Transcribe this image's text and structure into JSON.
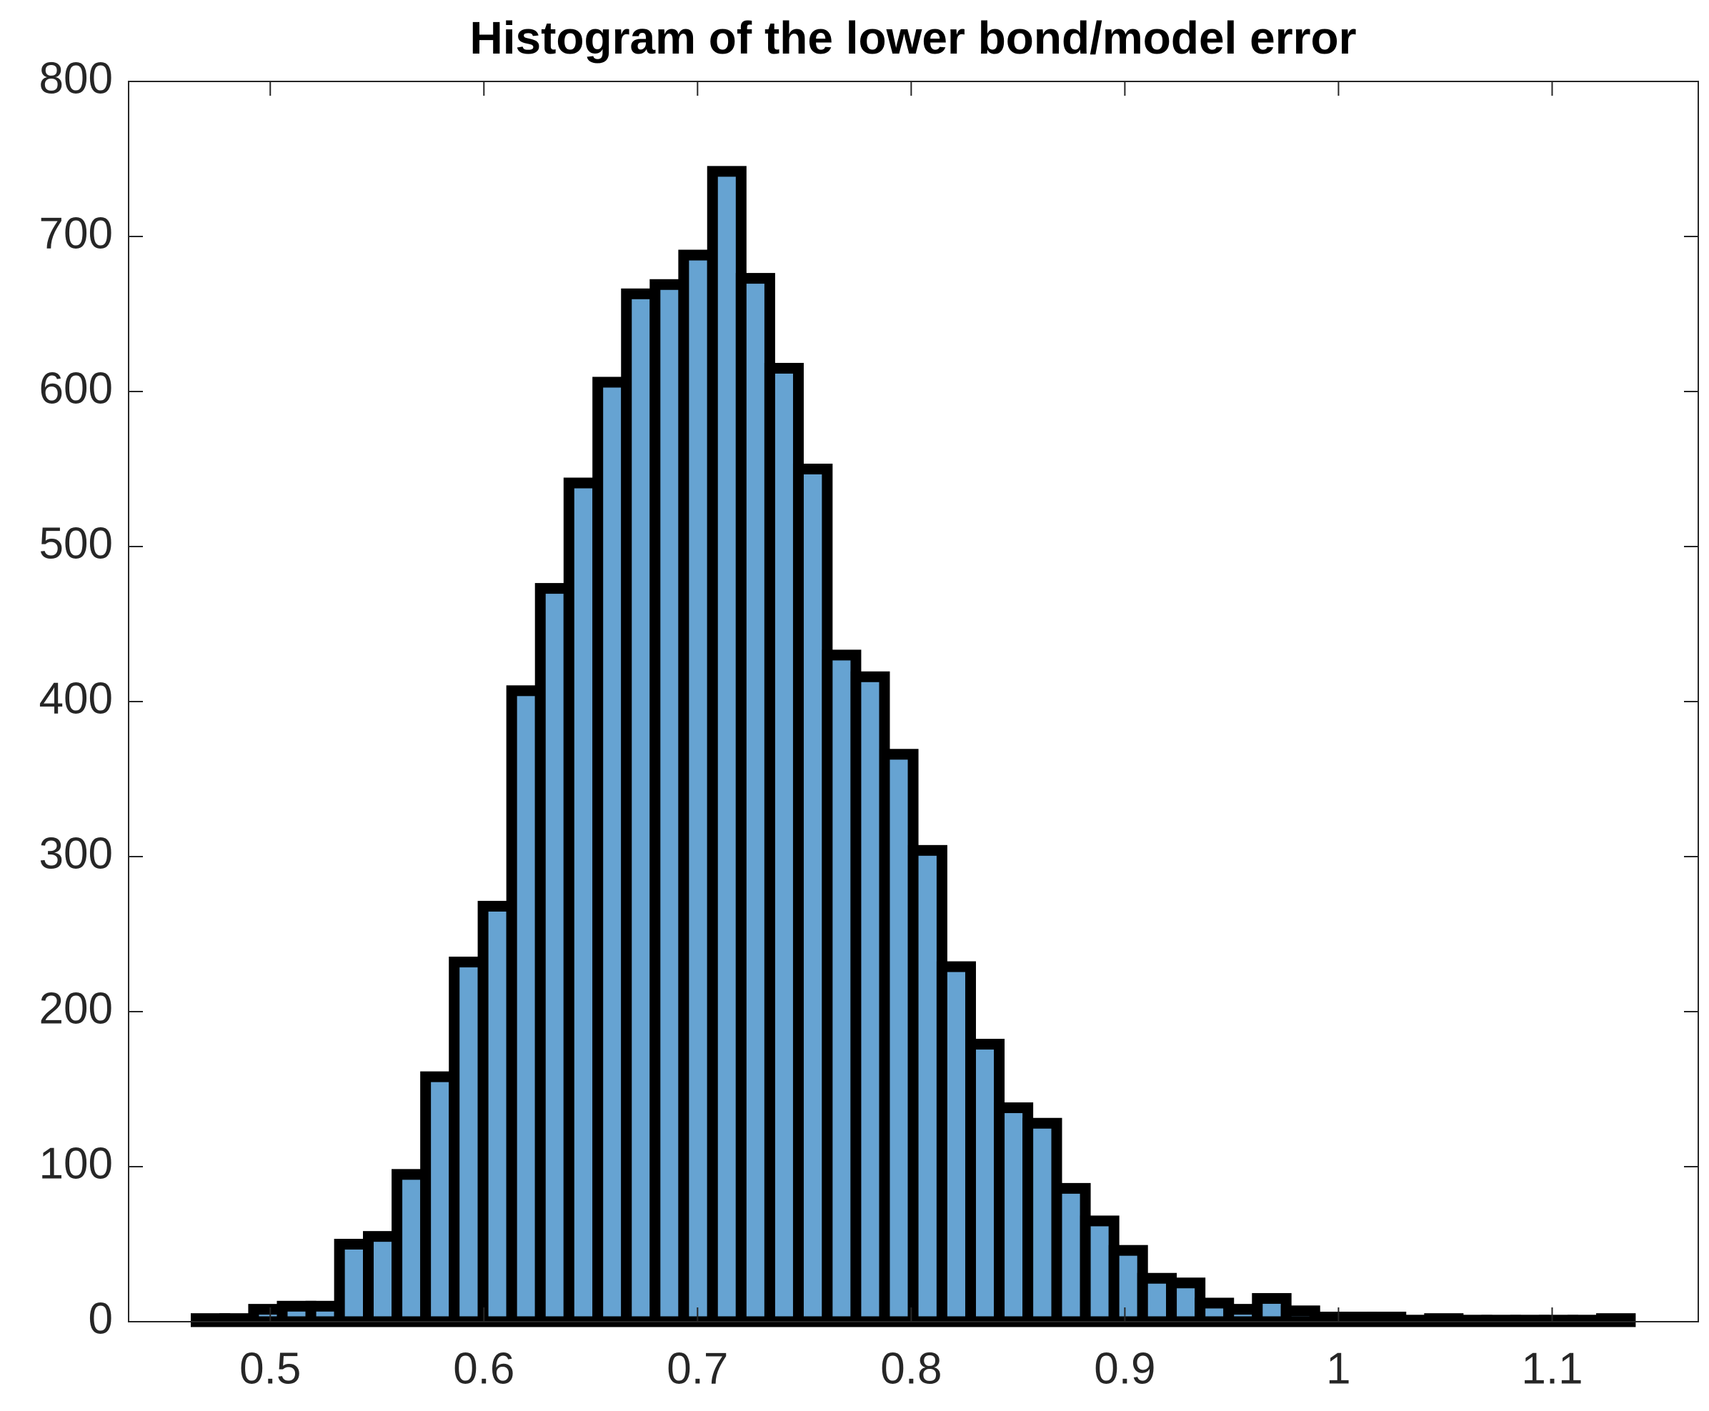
{
  "chart_data": {
    "type": "histogram",
    "title": "Histogram of the lower bond/model error",
    "bins": [
      0.4653,
      0.4787,
      0.4922,
      0.5056,
      0.519,
      0.5324,
      0.5459,
      0.5593,
      0.5727,
      0.5861,
      0.5996,
      0.613,
      0.6264,
      0.6398,
      0.6533,
      0.6667,
      0.6801,
      0.6935,
      0.707,
      0.7204,
      0.7338,
      0.7472,
      0.7607,
      0.7741,
      0.7875,
      0.8009,
      0.8144,
      0.8278,
      0.8412,
      0.8546,
      0.8681,
      0.8815,
      0.8949,
      0.9083,
      0.9218,
      0.9352,
      0.9486,
      0.962,
      0.9755,
      0.9889,
      1.0023,
      1.0157,
      1.0292,
      1.0426,
      1.056,
      1.0694,
      1.0829,
      1.0963,
      1.1097,
      1.1231,
      1.1366
    ],
    "values": [
      2,
      2,
      8,
      10,
      10,
      50,
      55,
      95,
      158,
      232,
      268,
      407,
      473,
      541,
      606,
      663,
      669,
      688,
      742,
      673,
      615,
      550,
      430,
      416,
      366,
      304,
      229,
      179,
      138,
      128,
      86,
      65,
      46,
      28,
      25,
      12,
      8,
      15,
      7,
      3,
      3,
      3,
      1,
      2,
      1,
      1,
      1,
      1,
      1,
      2
    ],
    "color": "#66a3d2",
    "edgecolor": "#000000",
    "xlim": [
      0.4337,
      1.1684
    ],
    "xticks": [
      0.5,
      0.6,
      0.7,
      0.8,
      0.9,
      1,
      1.1
    ],
    "ylim": [
      0,
      800
    ],
    "yticks": [
      0,
      100,
      200,
      300,
      400,
      500,
      600,
      700,
      800
    ],
    "grid": false
  }
}
